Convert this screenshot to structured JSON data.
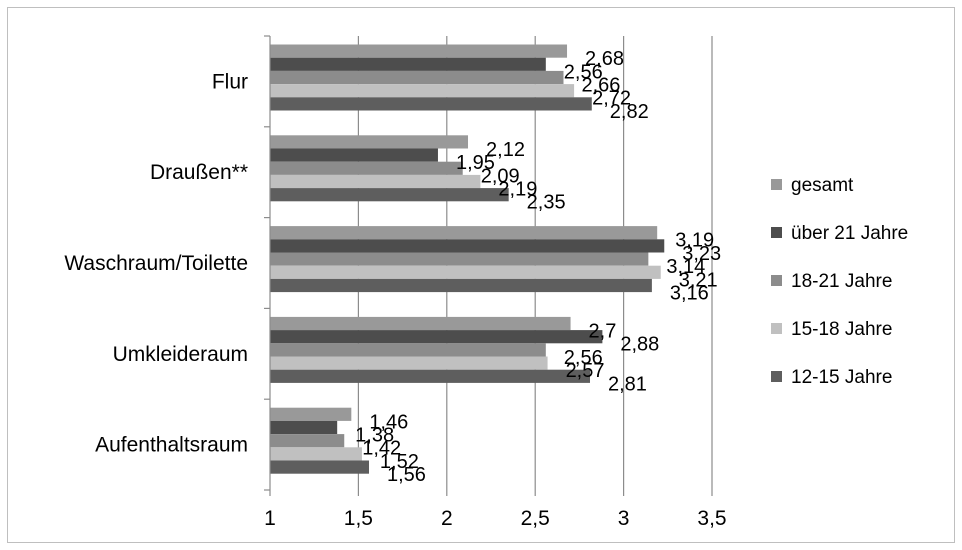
{
  "chart_data": {
    "type": "bar",
    "orientation": "horizontal",
    "categories": [
      "Flur",
      "Draußen**",
      "Waschraum/Toilette",
      "Umkleideraum",
      "Aufenthaltsraum"
    ],
    "series": [
      {
        "name": "gesamt",
        "color": "#999999",
        "values": [
          2.68,
          2.12,
          3.19,
          2.7,
          1.46
        ],
        "labels": [
          "2,68",
          "2,12",
          "3,19",
          "2,7",
          "1,46"
        ]
      },
      {
        "name": "über 21 Jahre",
        "color": "#4d4d4d",
        "values": [
          2.56,
          1.95,
          3.23,
          2.88,
          1.38
        ],
        "labels": [
          "2,56",
          "1,95",
          "3,23",
          "2,88",
          "1,38"
        ]
      },
      {
        "name": "18-21 Jahre",
        "color": "#8c8c8c",
        "values": [
          2.66,
          2.09,
          3.14,
          2.56,
          1.42
        ],
        "labels": [
          "2,66",
          "2,09",
          "3,14",
          "2,56",
          "1,42"
        ]
      },
      {
        "name": "15-18 Jahre",
        "color": "#c0c0c0",
        "values": [
          2.72,
          2.19,
          3.21,
          2.57,
          1.52
        ],
        "labels": [
          "2,72",
          "2,19",
          "3,21",
          "2,57",
          "1,52"
        ]
      },
      {
        "name": "12-15 Jahre",
        "color": "#5e5e5e",
        "values": [
          2.82,
          2.35,
          3.16,
          2.81,
          1.56
        ],
        "labels": [
          "2,82",
          "2,35",
          "3,16",
          "2,81",
          "1,56"
        ]
      }
    ],
    "xlim": [
      1,
      3.5
    ],
    "xticks": [
      1,
      1.5,
      2,
      2.5,
      3,
      3.5
    ],
    "xtick_labels": [
      "1",
      "1,5",
      "2",
      "2,5",
      "3",
      "3,5"
    ],
    "grid": "vertical",
    "legend_position": "right",
    "legend_order": [
      "gesamt",
      "über 21 Jahre",
      "18-21 Jahre",
      "15-18 Jahre",
      "12-15 Jahre"
    ]
  }
}
